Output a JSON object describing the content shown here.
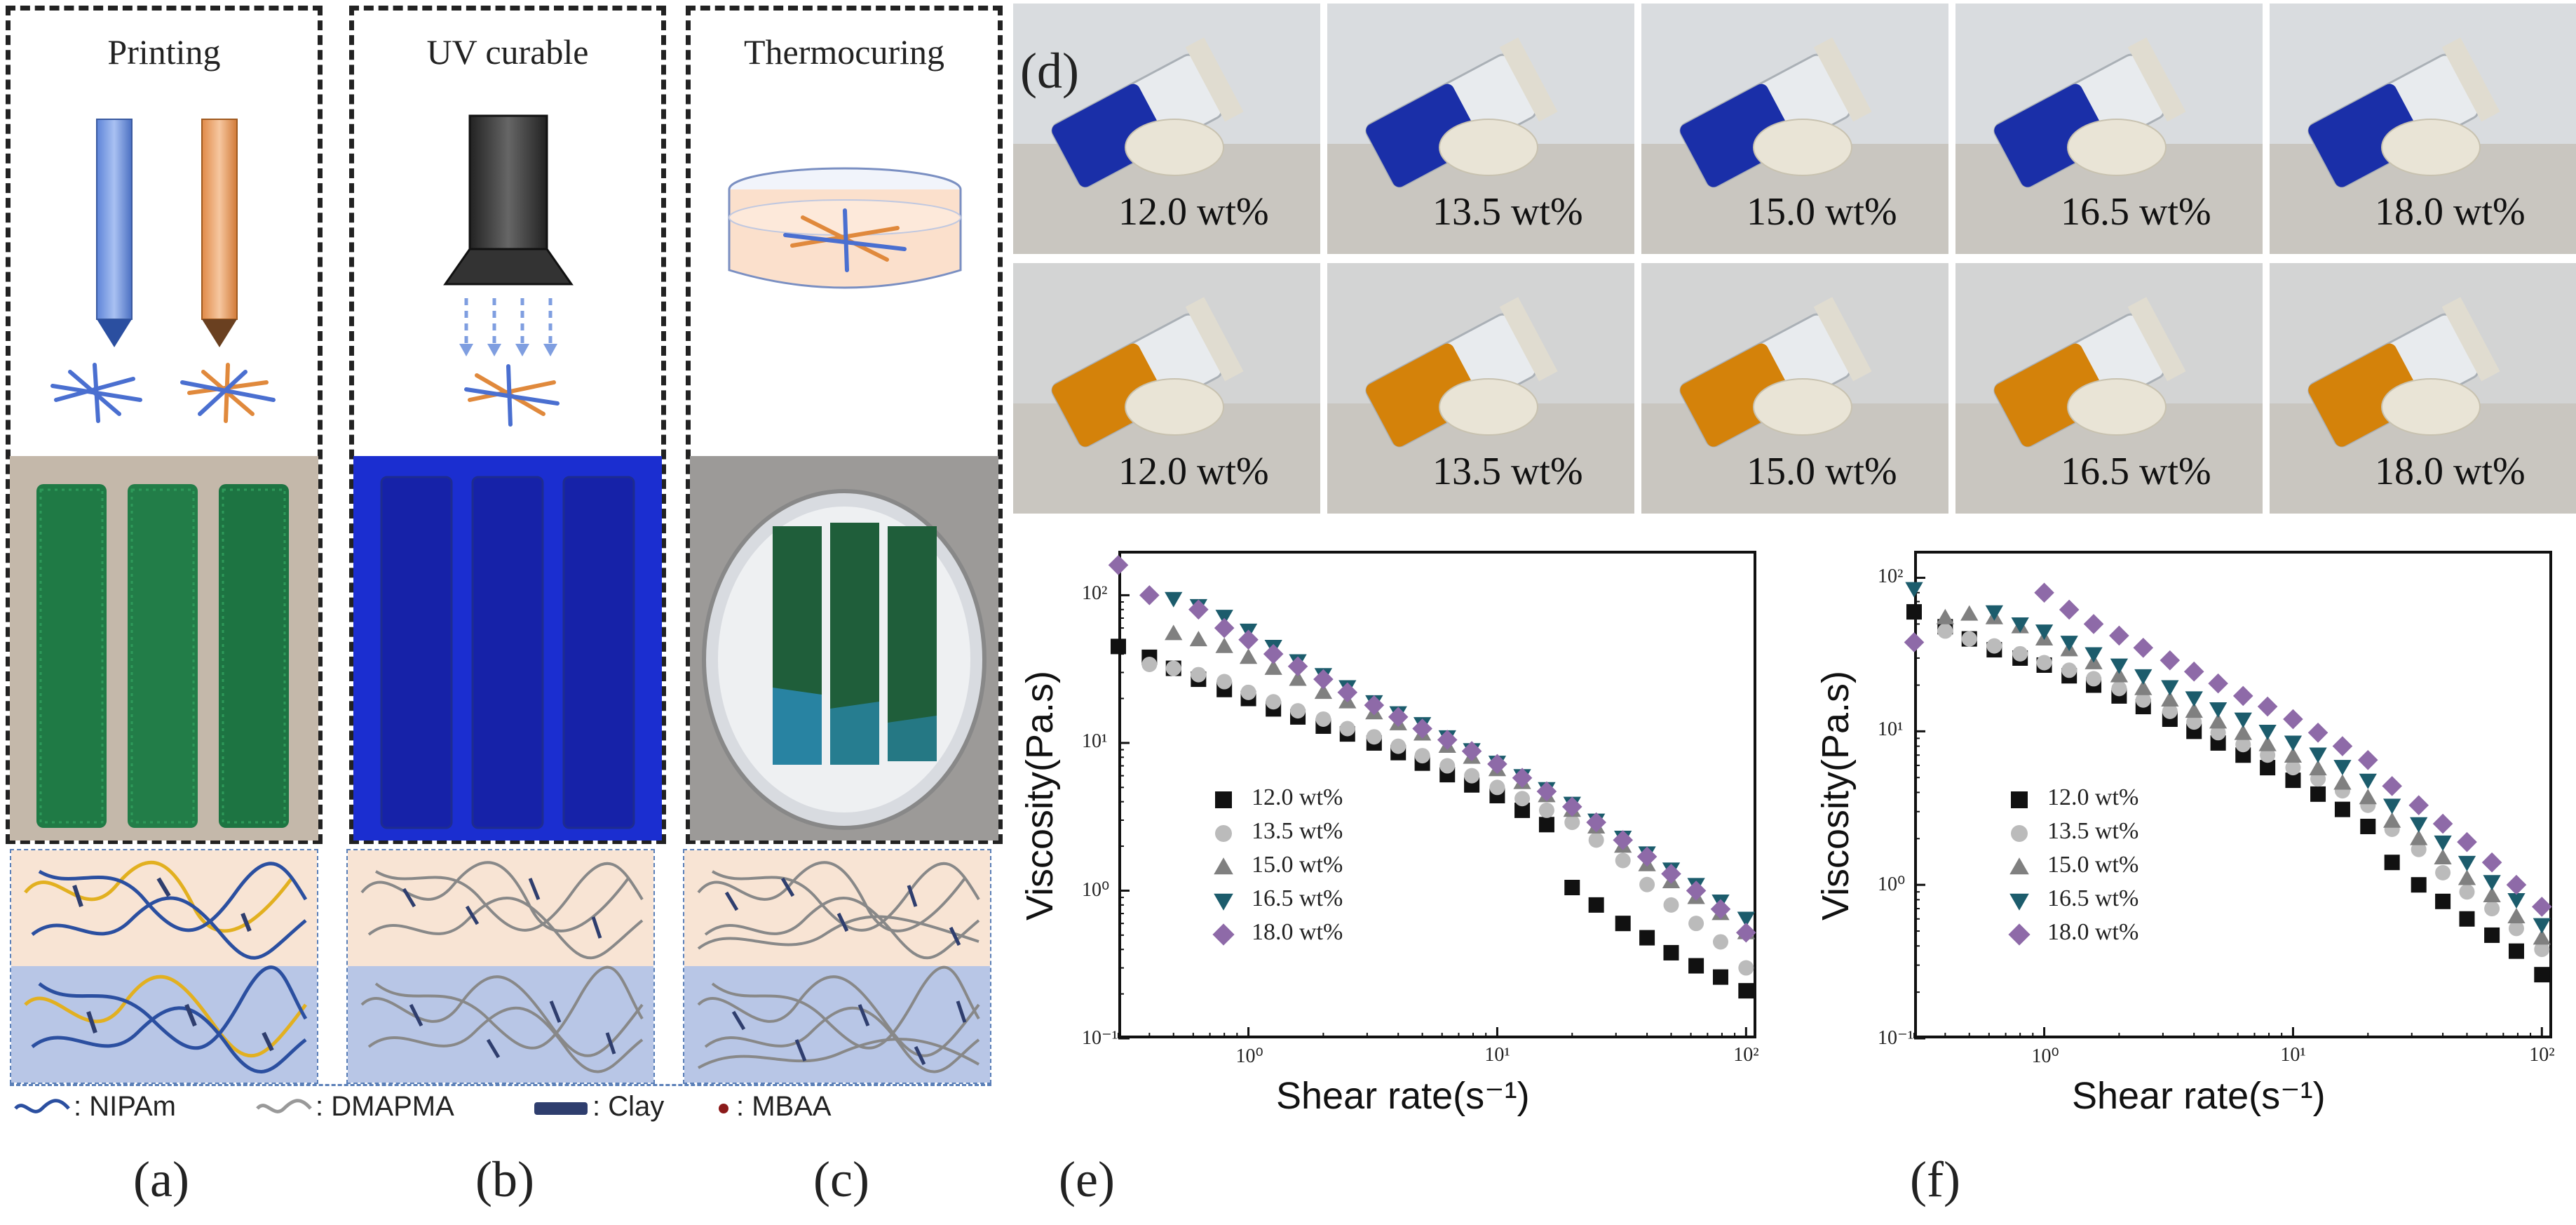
{
  "panels": {
    "a": {
      "title": "Printing",
      "letter": "(a)"
    },
    "b": {
      "title": "UV curable",
      "letter": "(b)"
    },
    "c": {
      "title": "Thermocuring",
      "letter": "(c)"
    },
    "d": {
      "letter": "(d)"
    },
    "e": {
      "letter": "(e)"
    },
    "f": {
      "letter": "(f)"
    }
  },
  "legend_schematic": {
    "nipam": ": NIPAm",
    "dmapma": ": DMAPMA",
    "clay": ": Clay",
    "mbaa": ": MBAA"
  },
  "vials": {
    "blue_row": [
      "12.0 wt%",
      "13.5 wt%",
      "15.0 wt%",
      "16.5 wt%",
      "18.0 wt%"
    ],
    "orange_row": [
      "12.0 wt%",
      "13.5 wt%",
      "15.0 wt%",
      "16.5 wt%",
      "18.0 wt%"
    ]
  },
  "colors": {
    "nipam": "#2b4fa0",
    "dmapma": "#999999",
    "clay": "#2f3e6e",
    "mbaa": "#8b1a1a",
    "blue_gel": "#1a2fa8",
    "orange_gel": "#d4820a",
    "green_gel": "#1f7a45"
  },
  "chart_data": [
    {
      "id": "e",
      "type": "scatter",
      "xscale": "log",
      "yscale": "log",
      "xlabel": "Shear rate(s⁻¹)",
      "ylabel": "Viscosity(Pa.s)",
      "xlim": [
        0.3,
        110
      ],
      "ylim": [
        0.1,
        200
      ],
      "xticks": [
        "10⁰",
        "10¹",
        "10²"
      ],
      "yticks": [
        "10⁻¹",
        "10⁰",
        "10¹",
        "10²"
      ],
      "legend_position": "lower-left",
      "series": [
        {
          "name": "12.0 wt%",
          "marker": "square",
          "color": "#111111",
          "x": [
            0.3,
            0.4,
            0.5,
            0.63,
            0.8,
            1.0,
            1.26,
            1.58,
            2.0,
            2.5,
            3.2,
            4.0,
            5.0,
            6.3,
            7.9,
            10,
            12.6,
            15.8,
            20,
            25,
            32,
            40,
            50,
            63,
            79,
            100
          ],
          "y": [
            45,
            38,
            32,
            27,
            23,
            20,
            17,
            15,
            13,
            11.5,
            10,
            8.6,
            7.3,
            6.1,
            5.2,
            4.4,
            3.5,
            2.8,
            1.05,
            0.8,
            0.6,
            0.48,
            0.38,
            0.31,
            0.26,
            0.21
          ]
        },
        {
          "name": "13.5 wt%",
          "marker": "circle",
          "color": "#bbbbbb",
          "x": [
            0.4,
            0.5,
            0.63,
            0.8,
            1.0,
            1.26,
            1.58,
            2.0,
            2.5,
            3.2,
            4.0,
            5.0,
            6.3,
            7.9,
            10,
            12.6,
            15.8,
            20,
            25,
            32,
            40,
            50,
            63,
            79,
            100
          ],
          "y": [
            34,
            32,
            29,
            26,
            22,
            19,
            16.5,
            14.5,
            12.5,
            11,
            9.5,
            8.2,
            7,
            6,
            5,
            4.2,
            3.5,
            2.9,
            2.2,
            1.6,
            1.1,
            0.8,
            0.6,
            0.45,
            0.3
          ]
        },
        {
          "name": "15.0 wt%",
          "marker": "triangle-up",
          "color": "#808080",
          "x": [
            0.5,
            0.63,
            0.8,
            1.0,
            1.26,
            1.58,
            2.0,
            2.5,
            3.2,
            4.0,
            5.0,
            6.3,
            7.9,
            10,
            12.6,
            15.8,
            20,
            25,
            32,
            40,
            50,
            63,
            79,
            100
          ],
          "y": [
            55,
            50,
            45,
            38,
            32,
            27,
            22,
            19,
            16,
            13.5,
            11.5,
            9.5,
            8,
            6.6,
            5.4,
            4.4,
            3.5,
            2.7,
            2,
            1.5,
            1.15,
            0.9,
            0.7,
            0.52
          ]
        },
        {
          "name": "16.5 wt%",
          "marker": "triangle-down",
          "color": "#1c5c6c",
          "x": [
            0.5,
            0.63,
            0.8,
            1.0,
            1.26,
            1.58,
            2.0,
            2.5,
            3.2,
            4.0,
            5.0,
            6.3,
            7.9,
            10,
            12.6,
            15.8,
            20,
            25,
            32,
            40,
            50,
            63,
            79,
            100
          ],
          "y": [
            95,
            85,
            72,
            58,
            45,
            36,
            29,
            24,
            19,
            16,
            13.5,
            11,
            9,
            7.4,
            6,
            4.9,
            3.9,
            3,
            2.3,
            1.8,
            1.4,
            1.1,
            0.85,
            0.65
          ]
        },
        {
          "name": "18.0 wt%",
          "marker": "diamond",
          "color": "#8e6aa8",
          "x": [
            0.3,
            0.4,
            0.63,
            0.8,
            1.0,
            1.26,
            1.58,
            2.0,
            2.5,
            3.2,
            4.0,
            5.0,
            6.3,
            7.9,
            10,
            12.6,
            15.8,
            20,
            25,
            32,
            40,
            50,
            63,
            79,
            100
          ],
          "y": [
            160,
            100,
            80,
            60,
            50,
            40,
            33,
            27,
            22,
            18,
            15,
            12.5,
            10.5,
            8.8,
            7.2,
            5.8,
            4.7,
            3.7,
            2.9,
            2.2,
            1.7,
            1.3,
            1,
            0.75,
            0.52
          ]
        }
      ]
    },
    {
      "id": "f",
      "type": "scatter",
      "xscale": "log",
      "yscale": "log",
      "xlabel": "Shear rate(s⁻¹)",
      "ylabel": "Viscosity(Pa.s)",
      "xlim": [
        0.3,
        110
      ],
      "ylim": [
        0.1,
        150
      ],
      "xticks": [
        "10⁰",
        "10¹",
        "10²"
      ],
      "yticks": [
        "10⁻¹",
        "10⁰",
        "10¹",
        "10²"
      ],
      "legend_position": "lower-left",
      "series": [
        {
          "name": "12.0 wt%",
          "marker": "square",
          "color": "#111111",
          "x": [
            0.3,
            0.4,
            0.5,
            0.63,
            0.8,
            1.0,
            1.26,
            1.58,
            2.0,
            2.5,
            3.2,
            4.0,
            5.0,
            6.3,
            7.9,
            10,
            12.6,
            15.8,
            20,
            25,
            32,
            40,
            50,
            63,
            79,
            100
          ],
          "y": [
            60,
            48,
            40,
            34,
            30,
            27,
            23,
            20,
            17,
            14.5,
            12,
            10,
            8.4,
            7,
            5.8,
            4.8,
            3.9,
            3.1,
            2.4,
            1.4,
            1,
            0.78,
            0.6,
            0.47,
            0.37,
            0.26
          ]
        },
        {
          "name": "13.5 wt%",
          "marker": "circle",
          "color": "#bbbbbb",
          "x": [
            0.4,
            0.5,
            0.63,
            0.8,
            1.0,
            1.26,
            1.58,
            2.0,
            2.5,
            3.2,
            4.0,
            5.0,
            6.3,
            7.9,
            10,
            12.6,
            15.8,
            20,
            25,
            32,
            40,
            50,
            63,
            79,
            100
          ],
          "y": [
            45,
            40,
            36,
            32,
            28,
            25,
            22,
            19,
            16,
            13.5,
            11.5,
            9.8,
            8.2,
            7,
            5.8,
            4.9,
            4.1,
            3.3,
            2.3,
            1.7,
            1.2,
            0.9,
            0.7,
            0.52,
            0.38
          ]
        },
        {
          "name": "15.0 wt%",
          "marker": "triangle-up",
          "color": "#808080",
          "x": [
            0.4,
            0.5,
            0.63,
            0.8,
            1.0,
            1.26,
            1.58,
            2.0,
            2.5,
            3.2,
            4.0,
            5.0,
            6.3,
            7.9,
            10,
            12.6,
            15.8,
            20,
            25,
            32,
            40,
            50,
            63,
            79,
            100
          ],
          "y": [
            55,
            58,
            55,
            48,
            40,
            34,
            28,
            23,
            19,
            16,
            13.5,
            11.5,
            9.7,
            8.2,
            6.9,
            5.7,
            4.6,
            3.7,
            2.6,
            2,
            1.5,
            1.1,
            0.85,
            0.62,
            0.45
          ]
        },
        {
          "name": "16.5 wt%",
          "marker": "triangle-down",
          "color": "#1c5c6c",
          "x": [
            0.3,
            0.63,
            0.8,
            1.0,
            1.26,
            1.58,
            2.0,
            2.5,
            3.2,
            4.0,
            5.0,
            6.3,
            7.9,
            10,
            12.6,
            15.8,
            20,
            25,
            32,
            40,
            50,
            63,
            79,
            100
          ],
          "y": [
            85,
            60,
            50,
            45,
            38,
            32,
            27,
            23,
            19.5,
            16.5,
            14,
            12,
            10,
            8.5,
            7.1,
            5.9,
            4.8,
            3.3,
            2.5,
            1.9,
            1.4,
            1.05,
            0.8,
            0.55
          ]
        },
        {
          "name": "18.0 wt%",
          "marker": "diamond",
          "color": "#8e6aa8",
          "x": [
            0.3,
            1.0,
            1.26,
            1.58,
            2.0,
            2.5,
            3.2,
            4.0,
            5.0,
            6.3,
            7.9,
            10,
            12.6,
            15.8,
            20,
            25,
            32,
            40,
            50,
            63,
            79,
            100
          ],
          "y": [
            38,
            80,
            62,
            50,
            42,
            35,
            29,
            24.5,
            20.5,
            17,
            14.5,
            12,
            9.8,
            8,
            6.5,
            4.4,
            3.3,
            2.5,
            1.9,
            1.4,
            1,
            0.72
          ]
        }
      ]
    }
  ]
}
